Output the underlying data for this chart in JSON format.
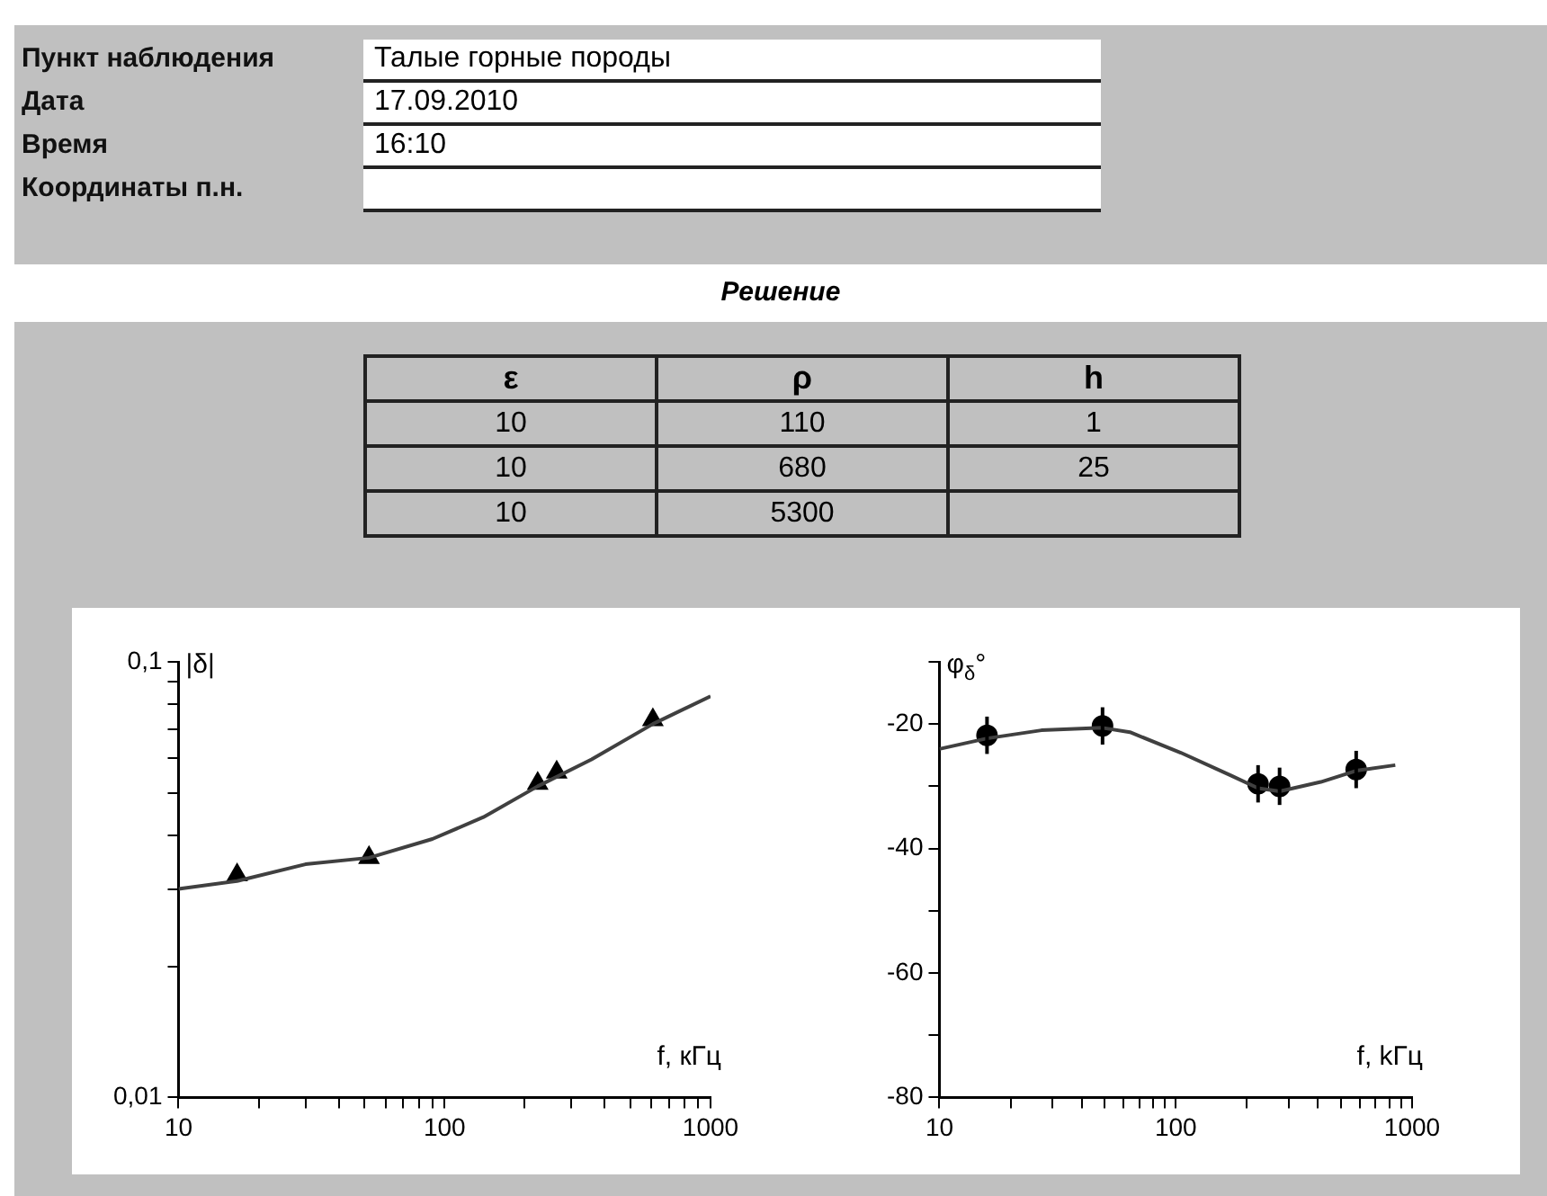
{
  "chart_data": [
    {
      "type": "other",
      "annotations": [
        "Пункт наблюдения",
        "Талые горные породы",
        "Дата",
        "17.09.2010",
        "Время",
        "16:10",
        "Координаты п.н."
      ]
    },
    {
      "type": "other",
      "title": "Решение",
      "categories": [
        "ε",
        "ρ",
        "h"
      ],
      "annotations": [
        "10",
        "110",
        "1",
        "10",
        "680",
        "25",
        "10",
        "5300"
      ]
    },
    {
      "type": "scatter",
      "ylabel": "|δ|",
      "xlabel": "f, кГц",
      "log": "xy",
      "xlim": [
        10,
        1000
      ],
      "xticks": [
        10,
        {
          "value": 20,
          "label": null
        },
        {
          "value": 30,
          "label": null
        },
        {
          "value": 40,
          "label": null
        },
        {
          "value": 50,
          "label": null
        },
        {
          "value": 60,
          "label": null
        },
        {
          "value": 70,
          "label": null
        },
        {
          "value": 80,
          "label": null
        },
        {
          "value": 90,
          "label": null
        },
        100,
        {
          "value": 200,
          "label": null
        },
        {
          "value": 300,
          "label": null
        },
        {
          "value": 400,
          "label": null
        },
        {
          "value": 500,
          "label": null
        },
        {
          "value": 600,
          "label": null
        },
        {
          "value": 700,
          "label": null
        },
        {
          "value": 800,
          "label": null
        },
        {
          "value": 900,
          "label": null
        },
        1000
      ],
      "ylim": [
        0.01,
        0.1
      ],
      "yticks": [
        {
          "value": 0.01,
          "label": "0,01"
        },
        {
          "value": 0.02,
          "label": null
        },
        {
          "value": 0.03,
          "label": null
        },
        {
          "value": 0.04,
          "label": null
        },
        {
          "value": 0.05,
          "label": null
        },
        {
          "value": 0.06,
          "label": null
        },
        {
          "value": 0.07,
          "label": null
        },
        {
          "value": 0.08,
          "label": null
        },
        {
          "value": 0.09,
          "label": null
        },
        {
          "value": 0.1,
          "label": "0,1"
        }
      ],
      "series": [
        {
          "type": "line",
          "color": "#404040",
          "marker": "none",
          "x": [
            10,
            16.6,
            30,
            52,
            90,
            140,
            224,
            357,
            607,
            1000
          ],
          "values": [
            0.0301,
            0.0314,
            0.0343,
            0.0355,
            0.0392,
            0.044,
            0.0518,
            0.0597,
            0.072,
            0.0834
          ]
        },
        {
          "type": "scatter",
          "color": "#000000",
          "marker": "triangle",
          "x": [
            16.6,
            52,
            224,
            264,
            607
          ],
          "values": [
            0.0324,
            0.0355,
            0.0526,
            0.0558,
            0.0736
          ]
        }
      ]
    },
    {
      "type": "scatter",
      "ylabel": "φ$_{δ}$°",
      "xlabel": "f, kГц",
      "log": "x",
      "xlim": [
        10,
        1000
      ],
      "xticks": [
        10,
        {
          "value": 20,
          "label": null
        },
        {
          "value": 30,
          "label": null
        },
        {
          "value": 40,
          "label": null
        },
        {
          "value": 50,
          "label": null
        },
        {
          "value": 60,
          "label": null
        },
        {
          "value": 70,
          "label": null
        },
        {
          "value": 80,
          "label": null
        },
        {
          "value": 90,
          "label": null
        },
        100,
        {
          "value": 200,
          "label": null
        },
        {
          "value": 300,
          "label": null
        },
        {
          "value": 400,
          "label": null
        },
        {
          "value": 500,
          "label": null
        },
        {
          "value": 600,
          "label": null
        },
        {
          "value": 700,
          "label": null
        },
        {
          "value": 800,
          "label": null
        },
        {
          "value": 900,
          "label": null
        },
        1000
      ],
      "ylim": [
        -80,
        -10
      ],
      "yticks": [
        -80,
        {
          "value": -70,
          "label": null
        },
        -60,
        {
          "value": -50,
          "label": null
        },
        -40,
        {
          "value": -30,
          "label": null
        },
        -20,
        {
          "value": -10,
          "label": null
        }
      ],
      "series": [
        {
          "type": "line",
          "color": "#404040",
          "marker": "none",
          "x": [
            10,
            15.9,
            27,
            49,
            64,
            105,
            172,
            223,
            275,
            411,
            580,
            849
          ],
          "values": [
            -24,
            -22.3,
            -21,
            -20.6,
            -21.3,
            -24.6,
            -28.3,
            -30.3,
            -30.8,
            -29.3,
            -27.5,
            -26.6
          ]
        },
        {
          "type": "scatter",
          "color": "#000000",
          "marker": "circle",
          "x": [
            15.9,
            49,
            223,
            275,
            580
          ],
          "values": [
            -21.8,
            -20.3,
            -29.6,
            -30,
            -27.3
          ],
          "errors": [
            3,
            3,
            3,
            3,
            3
          ]
        }
      ]
    }
  ]
}
